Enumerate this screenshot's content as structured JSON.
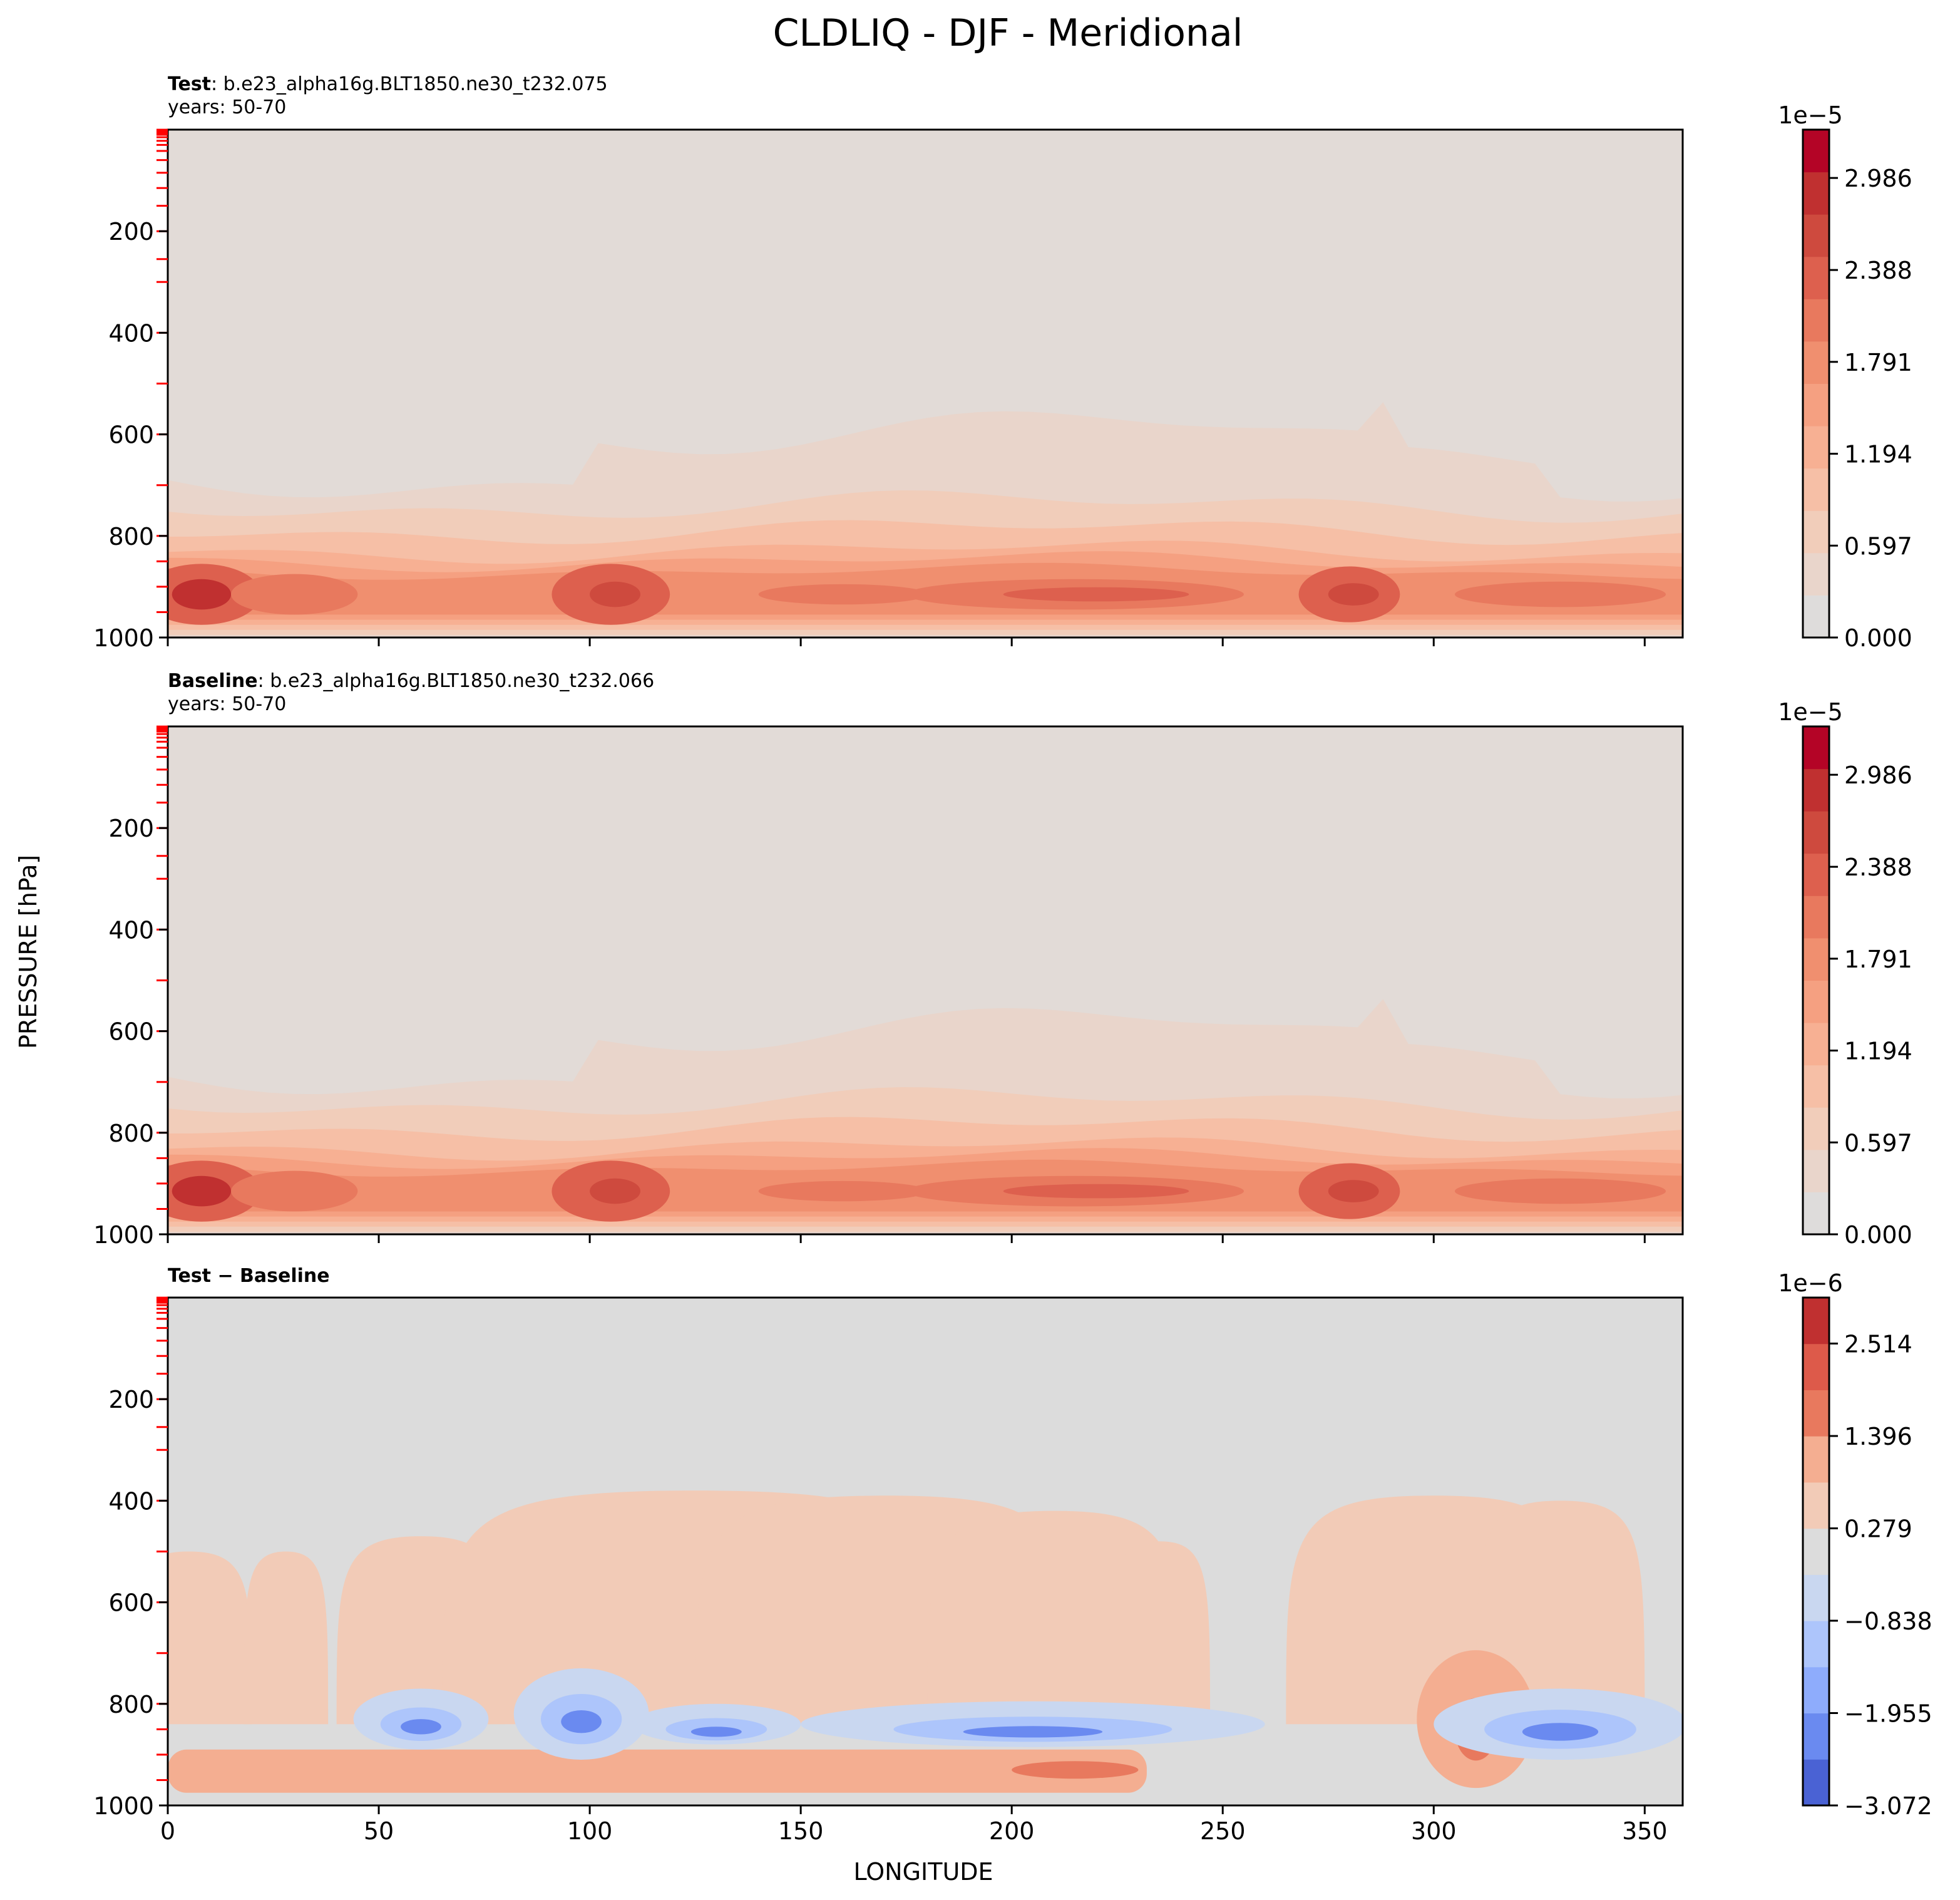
{
  "chart_data": {
    "type": "contour",
    "title": "CLDLIQ - DJF - Meridional",
    "xlabel": "LONGITUDE",
    "ylabel": "PRESSURE [hPa]",
    "xlim": [
      0,
      359
    ],
    "ylim": [
      1000,
      0
    ],
    "x_ticks": [
      "0",
      "50",
      "100",
      "150",
      "200",
      "250",
      "300",
      "350"
    ],
    "y_ticks": [
      "200",
      "400",
      "600",
      "800",
      "1000"
    ],
    "panels": [
      {
        "id": "test",
        "label_bold": "Test",
        "label_rest": ": b.e23_alpha16g.BLT1850.ne30_t232.075",
        "years": "years: 50-70",
        "colorbar": {
          "exponent": "1e−5",
          "ticks": [
            "2.986",
            "2.388",
            "1.791",
            "1.194",
            "0.597",
            "0.000"
          ],
          "range": [
            0.0,
            3.3
          ],
          "colors": [
            "#dedcdb",
            "#e9d5cb",
            "#f1cdba",
            "#f6bfa6",
            "#f7b093",
            "#f5a081",
            "#f08f6f",
            "#e8795e",
            "#dd604e",
            "#ce4a3e",
            "#c03030",
            "#b40426"
          ]
        }
      },
      {
        "id": "baseline",
        "label_bold": "Baseline",
        "label_rest": ": b.e23_alpha16g.BLT1850.ne30_t232.066",
        "years": "years: 50-70",
        "colorbar": {
          "exponent": "1e−5",
          "ticks": [
            "2.986",
            "2.388",
            "1.791",
            "1.194",
            "0.597",
            "0.000"
          ],
          "range": [
            0.0,
            3.3
          ],
          "colors": [
            "#dedcdb",
            "#e9d5cb",
            "#f1cdba",
            "#f6bfa6",
            "#f7b093",
            "#f5a081",
            "#f08f6f",
            "#e8795e",
            "#dd604e",
            "#ce4a3e",
            "#c03030",
            "#b40426"
          ]
        }
      },
      {
        "id": "diff",
        "label_bold": "Test − Baseline",
        "label_rest": "",
        "years": "",
        "colorbar": {
          "exponent": "1e−6",
          "ticks": [
            "2.514",
            "1.396",
            "0.279",
            "−0.838",
            "−1.955",
            "−3.072"
          ],
          "range": [
            -3.072,
            3.07
          ],
          "colors": [
            "#4a62d4",
            "#6a8af0",
            "#8eacfc",
            "#adc5fb",
            "#c9d7f0",
            "#dcdcdc",
            "#f2cbb7",
            "#f4ae91",
            "#e8795e",
            "#dd5a4a",
            "#c03030"
          ]
        }
      }
    ]
  }
}
